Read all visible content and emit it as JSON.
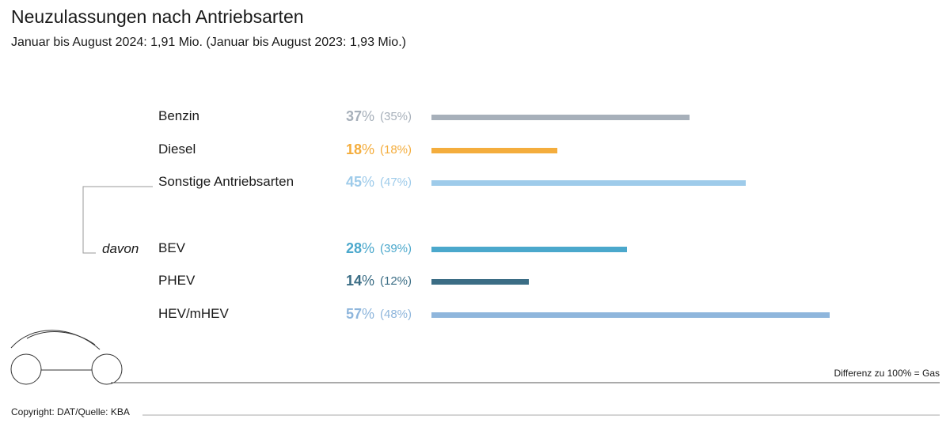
{
  "title": "Neuzulassungen nach Antriebsarten",
  "subtitle": "Januar bis August 2024: 1,91 Mio. (Januar bis August 2023: 1,93 Mio.)",
  "davon_label": "davon",
  "footnote": "Differenz zu 100% = Gas",
  "copyright": "Copyright: DAT/Quelle: KBA",
  "chart_data": {
    "type": "bar",
    "orientation": "horizontal",
    "title": "Neuzulassungen nach Antriebsarten",
    "unit": "%",
    "xlim": [
      0,
      100
    ],
    "categories": [
      "Benzin",
      "Diesel",
      "Sonstige Antriebsarten",
      "BEV",
      "PHEV",
      "HEV/mHEV"
    ],
    "series": [
      {
        "name": "Januar bis August 2024",
        "values": [
          37,
          18,
          45,
          28,
          14,
          57
        ]
      },
      {
        "name": "Januar bis August 2023",
        "values": [
          35,
          18,
          47,
          39,
          12,
          48
        ]
      }
    ],
    "rows": [
      {
        "label": "Benzin",
        "value": 37,
        "value_text": "37",
        "prev_text": "(35%)",
        "color": "#a7b0ba",
        "group": "main"
      },
      {
        "label": "Diesel",
        "value": 18,
        "value_text": "18",
        "prev_text": "(18%)",
        "color": "#f4ad3d",
        "group": "main"
      },
      {
        "label": "Sonstige Antriebsarten",
        "value": 45,
        "value_text": "45",
        "prev_text": "(47%)",
        "color": "#9ecbea",
        "group": "main"
      },
      {
        "label": "BEV",
        "value": 28,
        "value_text": "28",
        "prev_text": "(39%)",
        "color": "#4ba8cc",
        "group": "davon"
      },
      {
        "label": "PHEV",
        "value": 14,
        "value_text": "14",
        "prev_text": "(12%)",
        "color": "#3b6d85",
        "group": "davon"
      },
      {
        "label": "HEV/mHEV",
        "value": 57,
        "value_text": "57",
        "prev_text": "(48%)",
        "color": "#8fb6dc",
        "group": "davon"
      }
    ],
    "percent_sign": "%"
  }
}
